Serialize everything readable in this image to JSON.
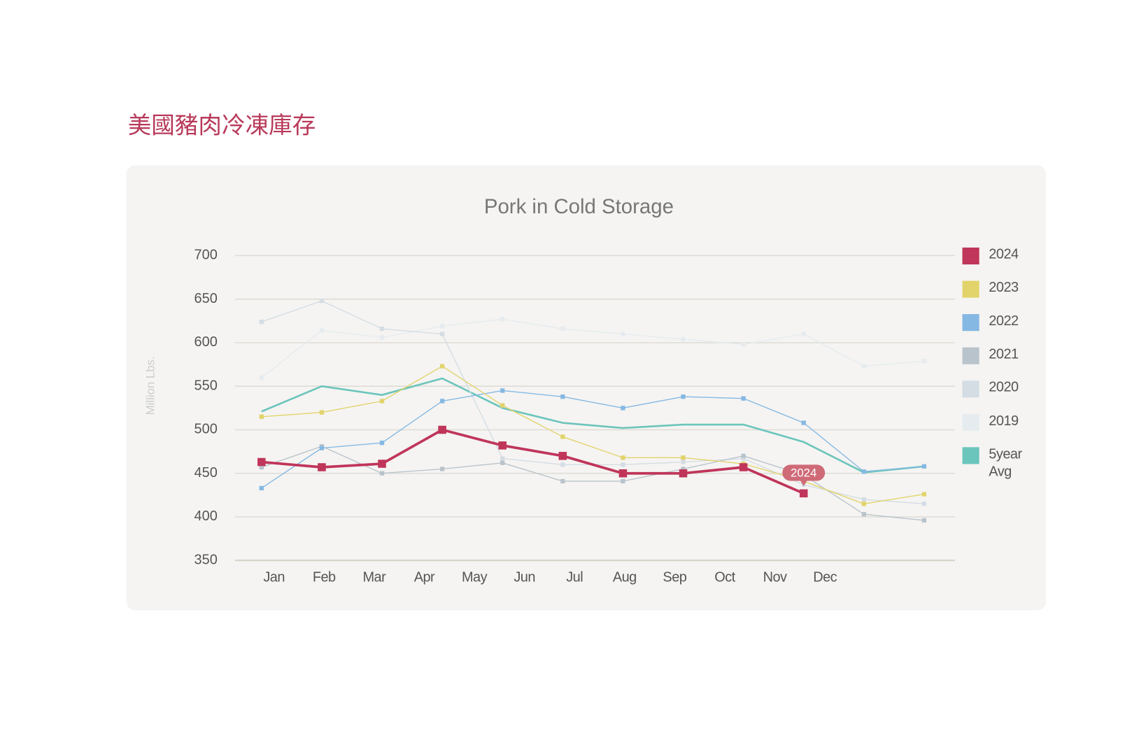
{
  "page_title": "美國豬肉冷凍庫存",
  "chart_data": {
    "type": "line",
    "title": "Pork in Cold Storage",
    "y_label": "Million Lbs.",
    "categories": [
      "Jan",
      "Feb",
      "Mar",
      "Apr",
      "May",
      "Jun",
      "Jul",
      "Aug",
      "Sep",
      "Oct",
      "Nov",
      "Dec"
    ],
    "ylim": [
      350,
      700
    ],
    "yticks": [
      350,
      400,
      450,
      500,
      550,
      600,
      650,
      700
    ],
    "grid": true,
    "legend": "right",
    "annotation": "2024",
    "series": [
      {
        "name": "2024",
        "color": "#c0355a",
        "values": [
          463,
          457,
          461,
          500,
          482,
          470,
          450,
          450,
          457,
          427,
          null,
          null
        ]
      },
      {
        "name": "2023",
        "color": "#e2d36b",
        "values": [
          515,
          520,
          533,
          573,
          528,
          492,
          468,
          468,
          461,
          441,
          415,
          426
        ]
      },
      {
        "name": "2022",
        "color": "#85b8e3",
        "values": [
          433,
          479,
          485,
          533,
          545,
          538,
          525,
          538,
          536,
          508,
          452,
          458
        ]
      },
      {
        "name": "2021",
        "color": "#b9c3cb",
        "values": [
          457,
          481,
          450,
          455,
          462,
          441,
          441,
          455,
          470,
          448,
          403,
          396
        ]
      },
      {
        "name": "2020",
        "color": "#d4dde4",
        "values": [
          624,
          648,
          616,
          610,
          467,
          460,
          460,
          463,
          467,
          437,
          420,
          415
        ]
      },
      {
        "name": "2019",
        "color": "#e5ebef",
        "values": [
          560,
          614,
          606,
          619,
          627,
          616,
          610,
          604,
          598,
          610,
          573,
          579
        ]
      },
      {
        "name": "5year Avg",
        "color": "#6cc5bc",
        "values": [
          521,
          550,
          540,
          559,
          525,
          508,
          502,
          506,
          506,
          486,
          451,
          458
        ]
      }
    ]
  }
}
